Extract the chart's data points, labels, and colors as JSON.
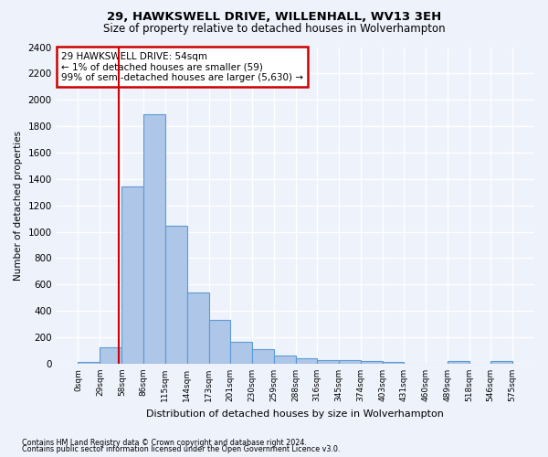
{
  "title_line1": "29, HAWKSWELL DRIVE, WILLENHALL, WV13 3EH",
  "title_line2": "Size of property relative to detached houses in Wolverhampton",
  "xlabel": "Distribution of detached houses by size in Wolverhampton",
  "ylabel": "Number of detached properties",
  "bar_color": "#aec6e8",
  "bar_edge_color": "#5b9bd5",
  "annotation_box_color": "#cc0000",
  "property_line_color": "#cc0000",
  "footnote1": "Contains HM Land Registry data © Crown copyright and database right 2024.",
  "footnote2": "Contains public sector information licensed under the Open Government Licence v3.0.",
  "annotation_line1": "29 HAWKSWELL DRIVE: 54sqm",
  "annotation_line2": "← 1% of detached houses are smaller (59)",
  "annotation_line3": "99% of semi-detached houses are larger (5,630) →",
  "property_value": 54,
  "bin_edges": [
    0,
    29,
    58,
    86,
    115,
    144,
    173,
    201,
    230,
    259,
    288,
    316,
    345,
    374,
    403,
    431,
    460,
    489,
    518,
    546,
    575
  ],
  "bar_heights": [
    15,
    125,
    1345,
    1890,
    1045,
    540,
    335,
    165,
    110,
    65,
    40,
    30,
    25,
    20,
    15,
    0,
    0,
    20,
    0,
    20
  ],
  "ylim": [
    0,
    2400
  ],
  "yticks": [
    0,
    200,
    400,
    600,
    800,
    1000,
    1200,
    1400,
    1600,
    1800,
    2000,
    2200,
    2400
  ],
  "background_color": "#eef2fb",
  "plot_background_color": "#eef2fb",
  "grid_color": "#ffffff"
}
